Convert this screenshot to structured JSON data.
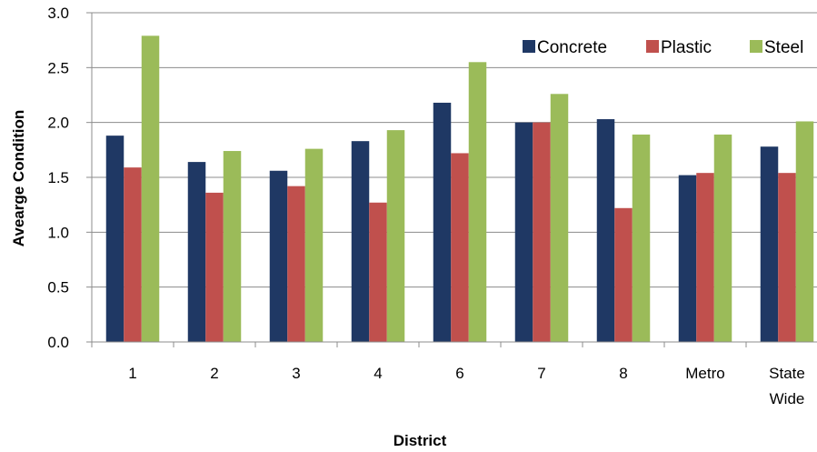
{
  "chart_data": {
    "type": "bar",
    "title": "",
    "xlabel": "District",
    "ylabel": "Avearge Condition",
    "ylim": [
      0,
      3.0
    ],
    "yticks": [
      "0.0",
      "0.5",
      "1.0",
      "1.5",
      "2.0",
      "2.5",
      "3.0"
    ],
    "categories": [
      [
        "1"
      ],
      [
        "2"
      ],
      [
        "3"
      ],
      [
        "4"
      ],
      [
        "6"
      ],
      [
        "7"
      ],
      [
        "8"
      ],
      [
        "Metro"
      ],
      [
        "State",
        "Wide"
      ]
    ],
    "series": [
      {
        "name": "Concrete",
        "color": "#1F3864",
        "values": [
          1.88,
          1.64,
          1.56,
          1.83,
          2.18,
          2.0,
          2.03,
          1.52,
          1.78
        ]
      },
      {
        "name": "Plastic",
        "color": "#C0504D",
        "values": [
          1.59,
          1.36,
          1.42,
          1.27,
          1.72,
          2.0,
          1.22,
          1.54,
          1.54
        ]
      },
      {
        "name": "Steel",
        "color": "#9BBB59",
        "values": [
          2.79,
          1.74,
          1.76,
          1.93,
          2.55,
          2.26,
          1.89,
          1.89,
          2.01
        ]
      }
    ],
    "grid": "horizontal",
    "legend": "top-right"
  }
}
